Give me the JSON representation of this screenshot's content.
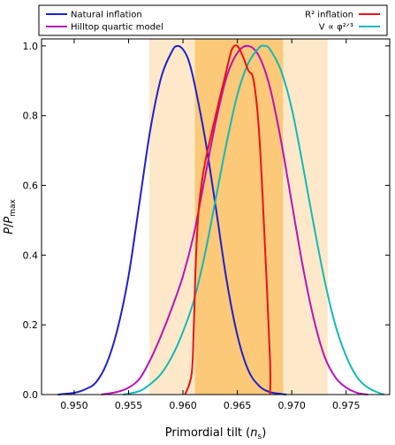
{
  "chart_data": {
    "type": "line",
    "xlabel": "Primordial tilt (nₛ)",
    "ylabel": "P/Pₘₐₓ",
    "xlim": [
      0.947,
      0.979
    ],
    "ylim": [
      0.0,
      1.02
    ],
    "xticks": [
      0.95,
      0.955,
      0.96,
      0.965,
      0.97,
      0.975
    ],
    "xtick_labels": [
      "0.950",
      "0.955",
      "0.960",
      "0.965",
      "0.970",
      "0.975"
    ],
    "yticks": [
      0.0,
      0.2,
      0.4,
      0.6,
      0.8,
      1.0
    ],
    "ytick_labels": [
      "0.0",
      "0.2",
      "0.4",
      "0.6",
      "0.8",
      "1.0"
    ],
    "grid": false,
    "legend_placement": "top, above plot",
    "bands": [
      {
        "range": [
          0.9569,
          0.9733
        ],
        "color": "#fde9c9"
      },
      {
        "range": [
          0.9611,
          0.9692
        ],
        "color": "#fbc978"
      }
    ],
    "series": [
      {
        "name": "Natural inflation",
        "color": "#1f1fd0",
        "x": [
          0.9485,
          0.95,
          0.951,
          0.952,
          0.953,
          0.954,
          0.955,
          0.956,
          0.957,
          0.958,
          0.959,
          0.9595,
          0.96,
          0.9605,
          0.961,
          0.962,
          0.963,
          0.964,
          0.965,
          0.966,
          0.967,
          0.968,
          0.969,
          0.9695
        ],
        "y": [
          0.0,
          0.005,
          0.015,
          0.035,
          0.09,
          0.19,
          0.34,
          0.55,
          0.76,
          0.91,
          0.985,
          1.0,
          0.99,
          0.96,
          0.9,
          0.74,
          0.54,
          0.33,
          0.17,
          0.07,
          0.025,
          0.007,
          0.002,
          0.0
        ]
      },
      {
        "name": "Hilltop quartic model",
        "color": "#bb12bb",
        "x": [
          0.9525,
          0.954,
          0.955,
          0.956,
          0.957,
          0.958,
          0.959,
          0.96,
          0.961,
          0.962,
          0.963,
          0.964,
          0.965,
          0.966,
          0.967,
          0.968,
          0.969,
          0.97,
          0.971,
          0.972,
          0.973,
          0.974,
          0.975,
          0.976,
          0.977
        ],
        "y": [
          0.0,
          0.008,
          0.02,
          0.045,
          0.1,
          0.17,
          0.25,
          0.34,
          0.46,
          0.62,
          0.78,
          0.91,
          0.98,
          1.0,
          0.97,
          0.88,
          0.73,
          0.55,
          0.37,
          0.22,
          0.11,
          0.05,
          0.02,
          0.005,
          0.0
        ]
      },
      {
        "name": "R² inflation",
        "color": "#e81414",
        "x": [
          0.9602,
          0.9608,
          0.961,
          0.9612,
          0.9615,
          0.962,
          0.963,
          0.964,
          0.9645,
          0.965,
          0.9655,
          0.966,
          0.9665,
          0.967,
          0.9675,
          0.968,
          0.968
        ],
        "y": [
          0.0,
          0.06,
          0.2,
          0.4,
          0.55,
          0.66,
          0.8,
          0.93,
          0.99,
          1.0,
          0.97,
          0.93,
          0.9,
          0.75,
          0.45,
          0.1,
          0.0
        ]
      },
      {
        "name": "V ∝ φ²ᐟ³",
        "color": "#14b8b8",
        "x": [
          0.9545,
          0.956,
          0.957,
          0.958,
          0.959,
          0.96,
          0.961,
          0.962,
          0.963,
          0.964,
          0.965,
          0.966,
          0.967,
          0.9675,
          0.968,
          0.969,
          0.97,
          0.971,
          0.972,
          0.973,
          0.974,
          0.975,
          0.976,
          0.977,
          0.978,
          0.9785
        ],
        "y": [
          0.0,
          0.01,
          0.03,
          0.06,
          0.11,
          0.18,
          0.27,
          0.4,
          0.56,
          0.72,
          0.86,
          0.95,
          0.995,
          1.0,
          0.99,
          0.93,
          0.82,
          0.66,
          0.49,
          0.33,
          0.2,
          0.11,
          0.05,
          0.02,
          0.005,
          0.0
        ]
      }
    ],
    "legend": {
      "left": [
        "Natural inflation",
        "Hilltop quartic model"
      ],
      "right": [
        "R² inflation",
        "V ∝ φ²ᐟ³"
      ]
    }
  }
}
